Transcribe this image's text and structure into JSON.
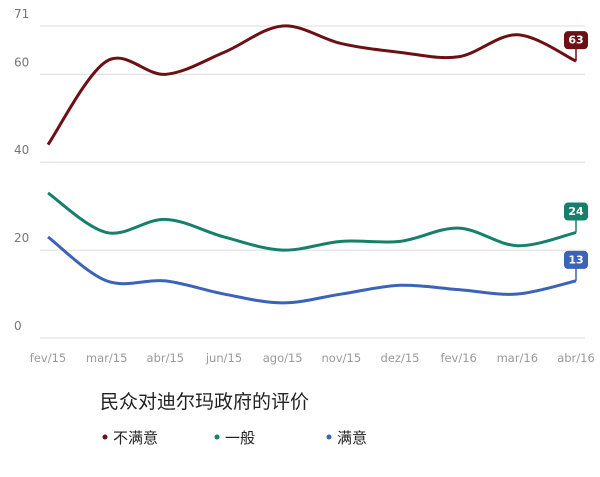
{
  "chart_data": {
    "type": "line",
    "title": "民众对迪尔玛政府的评价",
    "categories": [
      "fev/15",
      "mar/15",
      "abr/15",
      "jun/15",
      "ago/15",
      "nov/15",
      "dez/15",
      "fev/16",
      "mar/16",
      "abr/16"
    ],
    "series": [
      {
        "name": "不满意",
        "color": "#6b1014",
        "values": [
          44,
          63,
          60,
          65,
          71,
          67,
          65,
          64,
          69,
          63
        ]
      },
      {
        "name": "一般",
        "color": "#17806a",
        "values": [
          33,
          24,
          27,
          23,
          20,
          22,
          22,
          25,
          21,
          24
        ]
      },
      {
        "name": "满意",
        "color": "#3b63b8",
        "values": [
          23,
          13,
          13,
          10,
          8,
          10,
          12,
          11,
          10,
          13
        ]
      }
    ],
    "ylim": [
      0,
      71
    ],
    "yticks": [
      0,
      20,
      40,
      60,
      71
    ],
    "grid": true
  }
}
